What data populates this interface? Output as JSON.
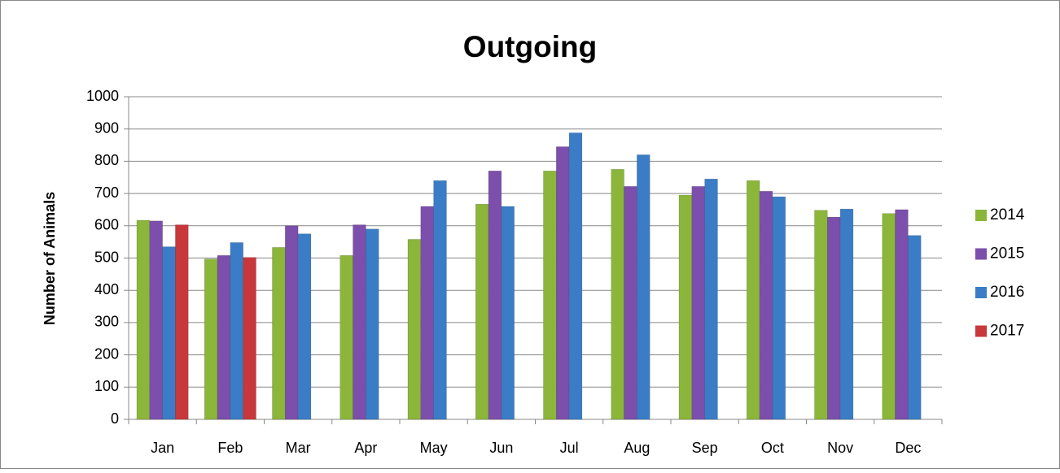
{
  "chart_data": {
    "type": "bar",
    "title": "Outgoing",
    "y_label": "Number of Animals",
    "categories": [
      "Jan",
      "Feb",
      "Mar",
      "Apr",
      "May",
      "Jun",
      "Jul",
      "Aug",
      "Sep",
      "Oct",
      "Nov",
      "Dec"
    ],
    "series": [
      {
        "name": "2014",
        "color": "#8bb63a",
        "values": [
          617,
          497,
          533,
          508,
          558,
          667,
          770,
          775,
          695,
          740,
          648,
          638
        ]
      },
      {
        "name": "2015",
        "color": "#7b4fab",
        "values": [
          615,
          508,
          600,
          603,
          660,
          770,
          845,
          722,
          722,
          707,
          627,
          650
        ]
      },
      {
        "name": "2016",
        "color": "#3a7dc6",
        "values": [
          535,
          548,
          575,
          590,
          740,
          660,
          888,
          820,
          745,
          690,
          652,
          570
        ]
      },
      {
        "name": "2017",
        "color": "#c8373a",
        "values": [
          603,
          502,
          null,
          null,
          null,
          null,
          null,
          null,
          null,
          null,
          null,
          null
        ]
      }
    ],
    "ylim": [
      0,
      1000
    ],
    "yticks": [
      0,
      100,
      200,
      300,
      400,
      500,
      600,
      700,
      800,
      900,
      1000
    ],
    "grid": true,
    "legend": "right"
  }
}
